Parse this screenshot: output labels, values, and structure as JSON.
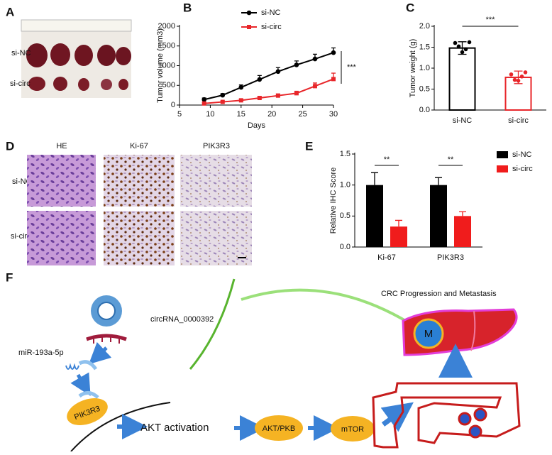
{
  "panel_a": {
    "label": "A",
    "rows": [
      "si-NC",
      "si-circ"
    ]
  },
  "panel_d": {
    "label": "D",
    "columns": [
      "HE",
      "Ki-67",
      "PIK3R3"
    ],
    "rows": [
      "si-NC",
      "si-circ"
    ]
  },
  "panel_f": {
    "label": "F",
    "circrna": "circRNA_0000392",
    "mirna": "miR-193a-5p",
    "target": "PIK3R3",
    "activation": "AKT activation",
    "akt": "AKT/PKB",
    "mtor": "mTOR",
    "outcome": "CRC Progression and Metastasis",
    "metastasis": "M"
  },
  "chart_data": [
    {
      "type": "line",
      "panel_label": "B",
      "x_label": "Days",
      "y_label": "Tumor volume (mm3)",
      "x": [
        9,
        12,
        15,
        18,
        21,
        24,
        27,
        30
      ],
      "series": [
        {
          "name": "si-NC",
          "color": "#000000",
          "marker": "circle",
          "values": [
            140,
            250,
            450,
            650,
            850,
            1020,
            1170,
            1330
          ],
          "errors": [
            40,
            40,
            60,
            100,
            100,
            100,
            120,
            120
          ]
        },
        {
          "name": "si-circ",
          "color": "#e8262a",
          "marker": "square",
          "values": [
            40,
            80,
            120,
            180,
            240,
            300,
            480,
            660
          ],
          "errors": [
            20,
            20,
            30,
            30,
            40,
            50,
            80,
            150
          ]
        }
      ],
      "xlim": [
        5,
        30
      ],
      "xticks": [
        5,
        10,
        15,
        20,
        25,
        30
      ],
      "ylim": [
        0,
        2000
      ],
      "yticks": [
        0,
        500,
        1000,
        1500,
        2000
      ],
      "annotation": "***"
    },
    {
      "type": "bar",
      "panel_label": "C",
      "y_label": "Tumor weight (g)",
      "categories": [
        "si-NC",
        "si-circ"
      ],
      "values": [
        1.48,
        0.78
      ],
      "errors": [
        0.15,
        0.15
      ],
      "colors": [
        "#000000",
        "#e8262a"
      ],
      "points": [
        [
          1.6,
          1.52,
          1.38,
          1.45,
          1.62
        ],
        [
          0.85,
          0.72,
          0.7,
          0.8,
          0.9
        ]
      ],
      "ylim": [
        0,
        2.0
      ],
      "yticks": [
        {
          "value": 0,
          "label": "0.0"
        },
        0.5,
        {
          "value": 1,
          "label": "1.0"
        },
        1.5,
        {
          "value": 2,
          "label": "2.0"
        }
      ],
      "annotation": "***"
    },
    {
      "type": "bar",
      "panel_label": "E",
      "y_label": "Relative IHC Score",
      "categories": [
        "Ki-67",
        "PIK3R3"
      ],
      "series": [
        {
          "name": "si-NC",
          "color": "#000000",
          "values": [
            1.0,
            1.0
          ],
          "errors": [
            0.2,
            0.12
          ]
        },
        {
          "name": "si-circ",
          "color": "#f01c1c",
          "values": [
            0.33,
            0.5
          ],
          "errors": [
            0.1,
            0.07
          ]
        }
      ],
      "ylim": [
        0,
        1.5
      ],
      "yticks": [
        {
          "value": 0,
          "label": "0.0"
        },
        0.5,
        {
          "value": 1,
          "label": "1.0"
        },
        1.5
      ],
      "annotations": [
        "**",
        "**"
      ]
    }
  ]
}
